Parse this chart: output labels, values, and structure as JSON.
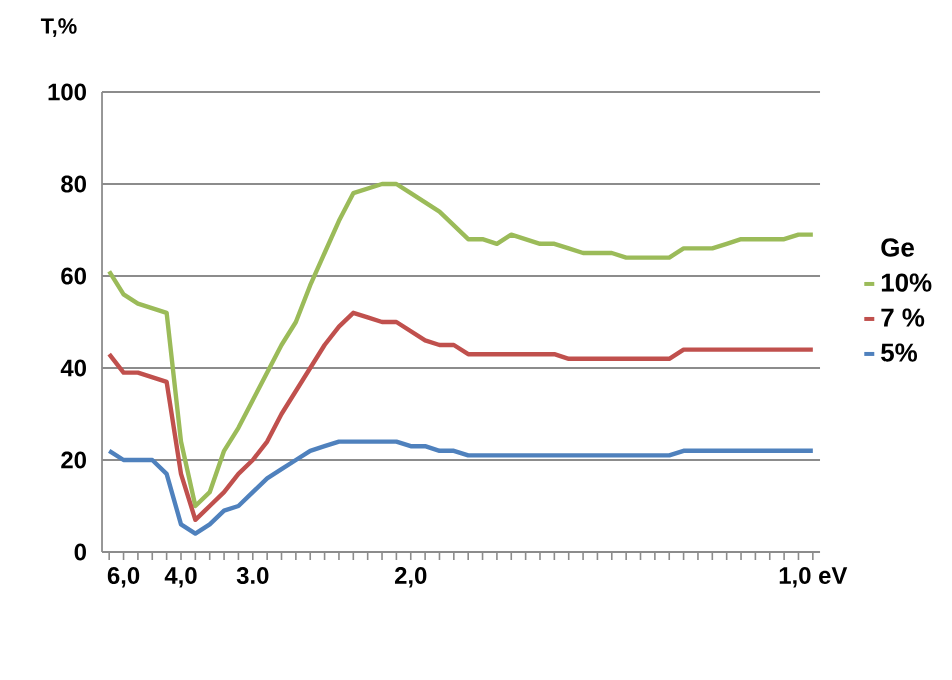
{
  "chart_data": {
    "type": "line",
    "ylabel": "T,%",
    "legend_title": "Ge",
    "legend": "right",
    "grid": "y",
    "categories": [
      null,
      "6,0",
      null,
      null,
      null,
      "4,0",
      null,
      null,
      null,
      null,
      "3.0",
      null,
      null,
      null,
      null,
      null,
      null,
      null,
      null,
      null,
      null,
      "2,0",
      null,
      null,
      null,
      null,
      null,
      null,
      null,
      null,
      null,
      null,
      null,
      null,
      null,
      null,
      null,
      null,
      null,
      null,
      null,
      null,
      null,
      null,
      null,
      null,
      null,
      null,
      null,
      "1,0 eV"
    ],
    "ylim": [
      0,
      100
    ],
    "yticks": [
      0,
      20,
      40,
      60,
      80,
      100
    ],
    "series": [
      {
        "name": "10%",
        "color": "#9bbb59",
        "values": [
          61,
          56,
          54,
          53,
          52,
          24,
          10,
          13,
          22,
          27,
          33,
          39,
          45,
          50,
          58,
          65,
          72,
          78,
          79,
          80,
          80,
          78,
          76,
          74,
          71,
          68,
          68,
          67,
          69,
          68,
          67,
          67,
          66,
          65,
          65,
          65,
          64,
          64,
          64,
          64,
          66,
          66,
          66,
          67,
          68,
          68,
          68,
          68,
          69,
          69
        ]
      },
      {
        "name": "7 %",
        "color": "#c0504d",
        "values": [
          43,
          39,
          39,
          38,
          37,
          17,
          7,
          10,
          13,
          17,
          20,
          24,
          30,
          35,
          40,
          45,
          49,
          52,
          51,
          50,
          50,
          48,
          46,
          45,
          45,
          43,
          43,
          43,
          43,
          43,
          43,
          43,
          42,
          42,
          42,
          42,
          42,
          42,
          42,
          42,
          44,
          44,
          44,
          44,
          44,
          44,
          44,
          44,
          44,
          44
        ]
      },
      {
        "name": "5%",
        "color": "#4f81bd",
        "values": [
          22,
          20,
          20,
          20,
          17,
          6,
          4,
          6,
          9,
          10,
          13,
          16,
          18,
          20,
          22,
          23,
          24,
          24,
          24,
          24,
          24,
          23,
          23,
          22,
          22,
          21,
          21,
          21,
          21,
          21,
          21,
          21,
          21,
          21,
          21,
          21,
          21,
          21,
          21,
          21,
          22,
          22,
          22,
          22,
          22,
          22,
          22,
          22,
          22,
          22
        ]
      }
    ]
  }
}
